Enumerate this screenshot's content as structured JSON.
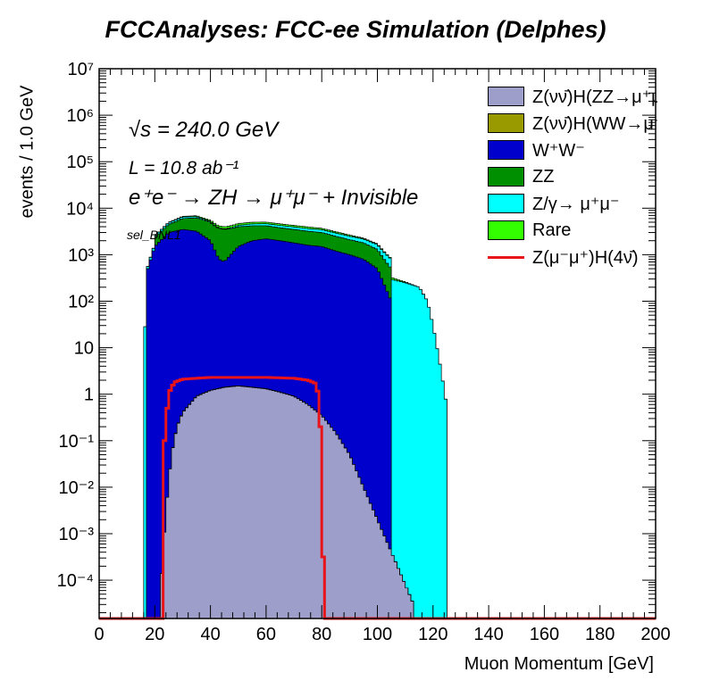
{
  "title": "FCCAnalyses: FCC-ee Simulation (Delphes)",
  "annotations": {
    "energy": "√s = 240.0 GeV",
    "lumi": "L = 10.8 ab⁻¹",
    "process": "e⁺e⁻ → ZH → μ⁺μ⁻ + Invisible",
    "selection": "sel_BNL1"
  },
  "colors": {
    "zz_inv_signal": "#9e9ecb",
    "ww_signal": "#999900",
    "ww": "#0000cc",
    "zz": "#008f00",
    "zgamma": "#00ffff",
    "rare": "#33ff00",
    "signal_line": "#e8141a"
  },
  "chart_data": {
    "type": "area",
    "stacked": true,
    "y_scale": "log",
    "xlabel": "Muon Momentum [GeV]",
    "ylabel": "events / 1.0 GeV",
    "xlim": [
      0,
      200
    ],
    "ylim": [
      1.5e-05,
      10000000
    ],
    "x_ticks": [
      "0",
      "20",
      "40",
      "60",
      "80",
      "100",
      "120",
      "140",
      "160",
      "180",
      "200"
    ],
    "y_ticks": [
      "10⁻⁴",
      "10⁻³",
      "10⁻²",
      "10⁻¹",
      "1",
      "10",
      "10²",
      "10³",
      "10⁴",
      "10⁵",
      "10⁶",
      "10⁷"
    ],
    "legend_position": "top-right",
    "series": [
      {
        "name": "Z(νν̄)H(ZZ→μ⁺μ⁻νν̄)",
        "key": "zz_inv_signal",
        "x": [
          22,
          24,
          26,
          28,
          30,
          35,
          40,
          45,
          50,
          55,
          60,
          65,
          70,
          75,
          80,
          85,
          90,
          95,
          100,
          105,
          110,
          113
        ],
        "y": [
          5e-05,
          0.003,
          0.05,
          0.2,
          0.4,
          0.9,
          1.2,
          1.4,
          1.5,
          1.4,
          1.3,
          1.1,
          0.9,
          0.6,
          0.35,
          0.15,
          0.05,
          0.01,
          0.002,
          0.0004,
          8e-05,
          3e-05
        ]
      },
      {
        "name": "Z(νν̄)H(WW→μ⁺νμ⁻ν̄)",
        "key": "ww_signal",
        "x": [
          25,
          27,
          30,
          35,
          40,
          45,
          50,
          55,
          60,
          65,
          70,
          75,
          78,
          80,
          82
        ],
        "y": [
          0.0001,
          0.003,
          0.008,
          0.015,
          0.02,
          0.025,
          0.025,
          0.022,
          0.02,
          0.015,
          0.01,
          0.005,
          0.002,
          0.0005,
          3e-05
        ]
      },
      {
        "name": "W⁺W⁻",
        "key": "ww",
        "x": [
          17,
          20,
          25,
          30,
          35,
          40,
          43,
          45,
          50,
          55,
          60,
          65,
          70,
          75,
          80,
          85,
          90,
          95,
          100,
          105
        ],
        "y": [
          400,
          1500,
          3000,
          3500,
          3200,
          2000,
          800,
          700,
          1500,
          2000,
          2200,
          2000,
          1800,
          1600,
          1500,
          1200,
          1000,
          800,
          500,
          100
        ]
      },
      {
        "name": "ZZ",
        "key": "zz",
        "x": [
          20,
          25,
          30,
          35,
          40,
          45,
          50,
          55,
          60,
          65,
          70,
          75,
          80,
          85,
          90,
          95,
          100,
          105
        ],
        "y": [
          800,
          1500,
          2500,
          3000,
          3000,
          2800,
          2500,
          2200,
          2000,
          1800,
          1700,
          1600,
          1500,
          1300,
          1100,
          1000,
          800,
          400
        ]
      },
      {
        "name": "Z/γ→ μ⁺μ⁻",
        "key": "zgamma",
        "x": [
          16,
          18,
          20,
          25,
          30,
          35,
          40,
          45,
          50,
          55,
          60,
          70,
          80,
          90,
          100,
          110,
          115,
          118,
          120,
          123,
          125
        ],
        "y": [
          20,
          80,
          200,
          400,
          500,
          400,
          200,
          100,
          300,
          400,
          450,
          450,
          450,
          400,
          350,
          250,
          200,
          100,
          30,
          3,
          0.5
        ]
      },
      {
        "name": "Rare",
        "key": "rare",
        "x": [
          17,
          20,
          25,
          30,
          35,
          40,
          45,
          50,
          55,
          60,
          65,
          70,
          75,
          80,
          85,
          90,
          95,
          100,
          105,
          110,
          115,
          118,
          120
        ],
        "y": [
          5,
          20,
          80,
          200,
          300,
          350,
          380,
          400,
          400,
          380,
          350,
          320,
          300,
          250,
          200,
          150,
          100,
          60,
          30,
          10,
          2,
          0.2,
          0.01
        ]
      },
      {
        "name": "Z(μ⁻μ⁺)H(4ν̄)",
        "key": "signal_line",
        "stacked": false,
        "x": [
          22.5,
          23.5,
          24.5,
          25.5,
          27,
          30,
          35,
          40,
          50,
          60,
          70,
          75,
          78,
          79,
          79.5,
          80,
          81
        ],
        "y": [
          1e-05,
          0.1,
          0.5,
          1.2,
          1.8,
          2.1,
          2.2,
          2.3,
          2.3,
          2.3,
          2.2,
          2.0,
          1.7,
          0.8,
          0.2,
          0.01,
          1e-05
        ]
      }
    ]
  }
}
